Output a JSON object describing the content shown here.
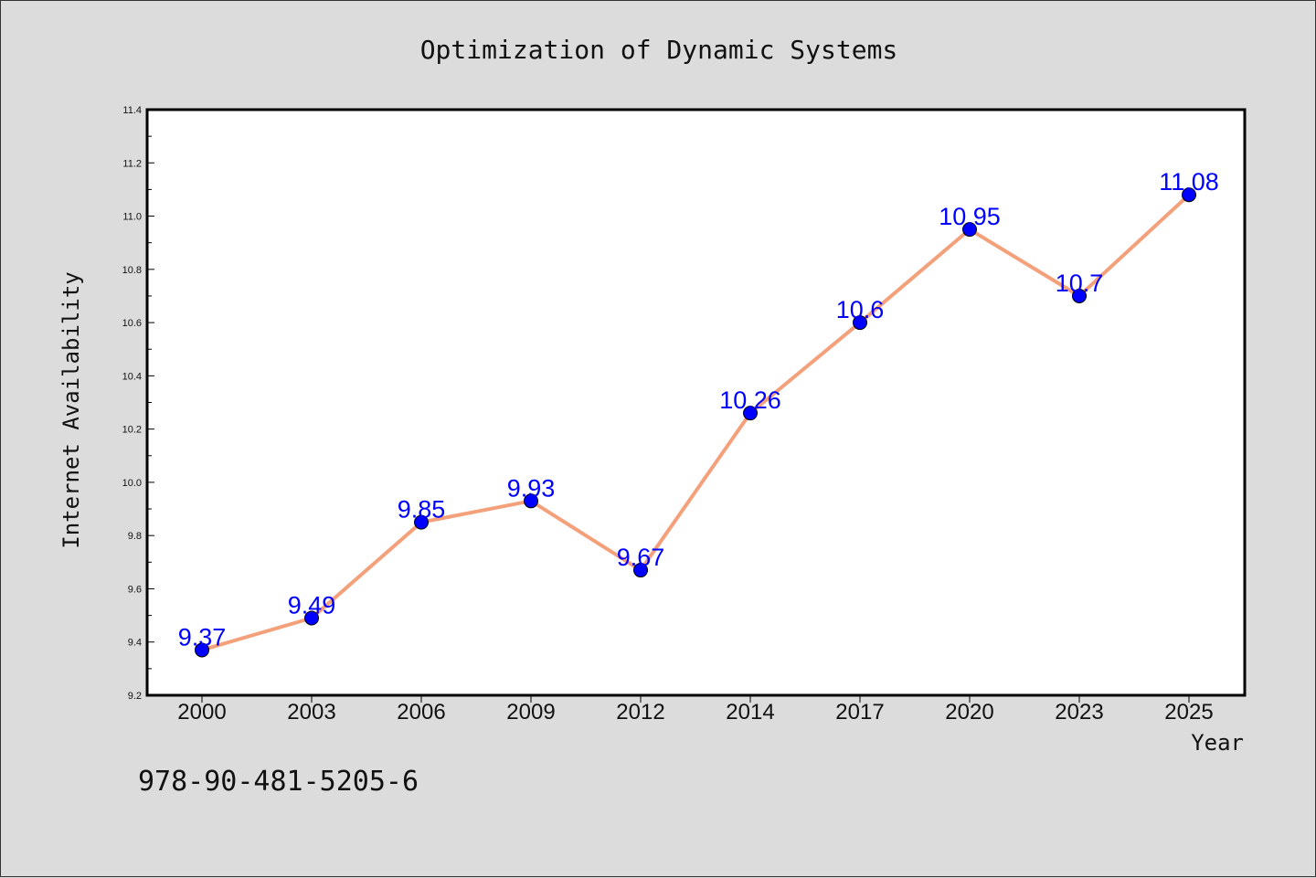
{
  "chart_data": {
    "type": "line",
    "title": "Optimization of Dynamic Systems",
    "xlabel": "Year",
    "ylabel": "Internet Availability",
    "categories": [
      "2000",
      "2003",
      "2006",
      "2009",
      "2012",
      "2014",
      "2017",
      "2020",
      "2023",
      "2025"
    ],
    "series": [
      {
        "values": [
          9.37,
          9.49,
          9.85,
          9.93,
          9.67,
          10.26,
          10.6,
          10.95,
          10.7,
          11.08
        ]
      }
    ],
    "data_labels": [
      "9.37",
      "9.49",
      "9.85",
      "9.93",
      "9.67",
      "10.26",
      "10.6",
      "10.95",
      "10.7",
      "11.08"
    ],
    "ylim": [
      9.2,
      11.4
    ],
    "yticks": [
      "9.2",
      "9.4",
      "9.6",
      "9.8",
      "10.0",
      "10.2",
      "10.4",
      "10.6",
      "10.8",
      "11.0",
      "11.2",
      "11.4"
    ],
    "grid": false,
    "legend": "none",
    "colors": {
      "line": "#f4a07a",
      "marker": "#0000ff",
      "label": "#0000ff",
      "background": "#dcdcdc",
      "plot_area": "#ffffff"
    }
  },
  "footer": {
    "isbn": "978-90-481-5205-6"
  }
}
